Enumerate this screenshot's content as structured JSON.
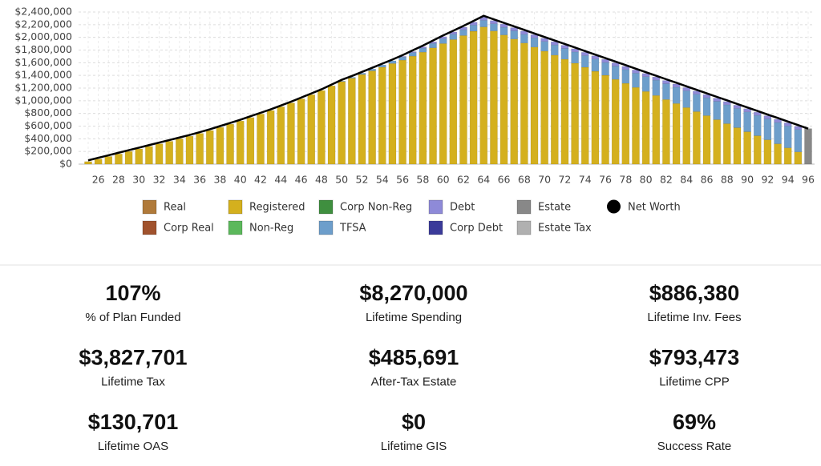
{
  "chart_data": {
    "type": "bar",
    "stacked": true,
    "categories": [
      null,
      "26",
      null,
      "28",
      null,
      "30",
      null,
      "32",
      null,
      "34",
      null,
      "36",
      null,
      "38",
      null,
      "40",
      null,
      "42",
      null,
      "44",
      null,
      "46",
      null,
      "48",
      null,
      "50",
      null,
      "52",
      null,
      "54",
      null,
      "56",
      null,
      "58",
      null,
      "60",
      null,
      "62",
      null,
      "64",
      null,
      "66",
      null,
      "68",
      null,
      "70",
      null,
      "72",
      null,
      "74",
      null,
      "76",
      null,
      "78",
      null,
      "80",
      null,
      "82",
      null,
      "84",
      null,
      "86",
      null,
      "88",
      null,
      "90",
      null,
      "92",
      null,
      "94",
      null,
      "96"
    ],
    "series": [
      {
        "name": "Real",
        "color": "#b07a3a",
        "values": [
          0,
          0,
          0,
          0,
          0,
          0,
          0,
          0,
          0,
          0,
          0,
          0,
          0,
          0,
          0,
          0,
          0,
          0,
          0,
          0,
          0,
          0,
          0,
          0,
          0,
          0,
          0,
          0,
          0,
          0,
          0,
          0,
          0,
          0,
          0,
          0,
          0,
          0,
          0,
          0,
          0,
          0,
          0,
          0,
          0,
          0,
          0,
          0,
          0,
          0,
          0,
          0,
          0,
          0,
          0,
          0,
          0,
          0,
          0,
          0,
          0,
          0,
          0,
          0,
          0,
          0,
          0,
          0,
          0,
          0,
          0,
          0
        ]
      },
      {
        "name": "Corp Real",
        "color": "#a0522d",
        "values": [
          0,
          0,
          0,
          0,
          0,
          0,
          0,
          0,
          0,
          0,
          0,
          0,
          0,
          0,
          0,
          0,
          0,
          0,
          0,
          0,
          0,
          0,
          0,
          0,
          0,
          0,
          0,
          0,
          0,
          0,
          0,
          0,
          0,
          0,
          0,
          0,
          0,
          0,
          0,
          0,
          0,
          0,
          0,
          0,
          0,
          0,
          0,
          0,
          0,
          0,
          0,
          0,
          0,
          0,
          0,
          0,
          0,
          0,
          0,
          0,
          0,
          0,
          0,
          0,
          0,
          0,
          0,
          0,
          0,
          0,
          0,
          0
        ]
      },
      {
        "name": "Registered",
        "color": "#d4b01e",
        "values": [
          40000,
          80000,
          120000,
          160000,
          200000,
          240000,
          280000,
          320000,
          360000,
          400000,
          440000,
          485000,
          530000,
          580000,
          630000,
          680000,
          735000,
          790000,
          845000,
          905000,
          965000,
          1030000,
          1095000,
          1160000,
          1235000,
          1303000,
          1356000,
          1414000,
          1472000,
          1530000,
          1588000,
          1641000,
          1704000,
          1767000,
          1835000,
          1903000,
          1966000,
          2029000,
          2097000,
          2165000,
          2101000,
          2038000,
          1974000,
          1911000,
          1847000,
          1783000,
          1720000,
          1656000,
          1593000,
          1529000,
          1465000,
          1402000,
          1338000,
          1275000,
          1211000,
          1147000,
          1084000,
          1020000,
          957000,
          893000,
          829000,
          766000,
          702000,
          639000,
          575000,
          511000,
          448000,
          384000,
          321000,
          257000,
          193000,
          0
        ]
      },
      {
        "name": "Non-Reg",
        "color": "#5cb85c",
        "values": [
          0,
          0,
          0,
          0,
          0,
          0,
          0,
          0,
          0,
          0,
          0,
          0,
          0,
          0,
          0,
          0,
          0,
          0,
          0,
          0,
          0,
          0,
          0,
          0,
          0,
          0,
          0,
          0,
          0,
          0,
          0,
          0,
          0,
          0,
          0,
          0,
          0,
          0,
          0,
          0,
          0,
          0,
          0,
          0,
          0,
          0,
          0,
          0,
          0,
          0,
          0,
          0,
          0,
          0,
          0,
          0,
          0,
          0,
          0,
          0,
          0,
          0,
          0,
          0,
          0,
          0,
          0,
          0,
          0,
          0,
          0,
          0
        ]
      },
      {
        "name": "Corp Non-Reg",
        "color": "#3f8f3f",
        "values": [
          0,
          0,
          0,
          0,
          0,
          0,
          0,
          0,
          0,
          0,
          0,
          0,
          0,
          0,
          0,
          0,
          0,
          0,
          0,
          0,
          0,
          0,
          0,
          0,
          0,
          0,
          0,
          0,
          0,
          0,
          0,
          0,
          0,
          0,
          0,
          0,
          0,
          0,
          0,
          0,
          0,
          0,
          0,
          0,
          0,
          0,
          0,
          0,
          0,
          0,
          0,
          0,
          0,
          0,
          0,
          0,
          0,
          0,
          0,
          0,
          0,
          0,
          0,
          0,
          0,
          0,
          0,
          0,
          0,
          0,
          0,
          0
        ]
      },
      {
        "name": "TFSA",
        "color": "#6d9ecb",
        "values": [
          0,
          0,
          0,
          0,
          0,
          0,
          0,
          0,
          0,
          0,
          0,
          0,
          0,
          0,
          0,
          0,
          0,
          0,
          0,
          0,
          0,
          0,
          0,
          0,
          0,
          7000,
          14000,
          21000,
          28000,
          35000,
          42000,
          49000,
          56000,
          63000,
          70000,
          77000,
          84000,
          91000,
          98000,
          105000,
          113000,
          121000,
          129000,
          137000,
          145000,
          153000,
          161000,
          169000,
          177000,
          185000,
          193000,
          201000,
          209000,
          217000,
          225000,
          233000,
          241000,
          249000,
          257000,
          265000,
          273000,
          281000,
          289000,
          297000,
          305000,
          313000,
          321000,
          329000,
          337000,
          345000,
          353000,
          0
        ]
      },
      {
        "name": "Debt",
        "color": "#8e8ad8",
        "values": [
          0,
          0,
          0,
          0,
          0,
          0,
          0,
          0,
          0,
          0,
          0,
          0,
          0,
          0,
          0,
          0,
          0,
          0,
          0,
          0,
          0,
          0,
          0,
          0,
          0,
          0,
          0,
          0,
          0,
          0,
          0,
          10000,
          15000,
          20000,
          25000,
          30000,
          35000,
          40000,
          45000,
          50000,
          50000,
          50000,
          50000,
          50000,
          50000,
          50000,
          50000,
          50000,
          50000,
          50000,
          50000,
          50000,
          50000,
          50000,
          50000,
          50000,
          50000,
          50000,
          50000,
          50000,
          50000,
          50000,
          50000,
          50000,
          50000,
          50000,
          50000,
          50000,
          50000,
          50000,
          50000,
          0
        ]
      },
      {
        "name": "Corp Debt",
        "color": "#3b3b9a",
        "values": [
          0,
          0,
          0,
          0,
          0,
          0,
          0,
          0,
          0,
          0,
          0,
          0,
          0,
          0,
          0,
          0,
          0,
          0,
          0,
          0,
          0,
          0,
          0,
          0,
          0,
          0,
          0,
          0,
          0,
          0,
          0,
          0,
          0,
          0,
          0,
          0,
          0,
          0,
          0,
          0,
          0,
          0,
          0,
          0,
          0,
          0,
          0,
          0,
          0,
          0,
          0,
          0,
          0,
          0,
          0,
          0,
          0,
          0,
          0,
          0,
          0,
          0,
          0,
          0,
          0,
          0,
          0,
          0,
          0,
          0,
          0,
          0
        ]
      },
      {
        "name": "Estate",
        "color": "#888888",
        "values": [
          0,
          0,
          0,
          0,
          0,
          0,
          0,
          0,
          0,
          0,
          0,
          0,
          0,
          0,
          0,
          0,
          0,
          0,
          0,
          0,
          0,
          0,
          0,
          0,
          0,
          0,
          0,
          0,
          0,
          0,
          0,
          0,
          0,
          0,
          0,
          0,
          0,
          0,
          0,
          0,
          0,
          0,
          0,
          0,
          0,
          0,
          0,
          0,
          0,
          0,
          0,
          0,
          0,
          0,
          0,
          0,
          0,
          0,
          0,
          0,
          0,
          0,
          0,
          0,
          0,
          0,
          0,
          0,
          0,
          0,
          0,
          560000
        ]
      },
      {
        "name": "Estate Tax",
        "color": "#b0b0b0",
        "values": [
          0,
          0,
          0,
          0,
          0,
          0,
          0,
          0,
          0,
          0,
          0,
          0,
          0,
          0,
          0,
          0,
          0,
          0,
          0,
          0,
          0,
          0,
          0,
          0,
          0,
          0,
          0,
          0,
          0,
          0,
          0,
          0,
          0,
          0,
          0,
          0,
          0,
          0,
          0,
          0,
          0,
          0,
          0,
          0,
          0,
          0,
          0,
          0,
          0,
          0,
          0,
          0,
          0,
          0,
          0,
          0,
          0,
          0,
          0,
          0,
          0,
          0,
          0,
          0,
          0,
          0,
          0,
          0,
          0,
          0,
          0,
          0
        ]
      }
    ],
    "net_worth": {
      "name": "Net Worth",
      "color": "#000000",
      "values": [
        60000,
        100000,
        140000,
        180000,
        220000,
        260000,
        300000,
        340000,
        380000,
        420000,
        460000,
        505000,
        550000,
        600000,
        650000,
        700000,
        755000,
        810000,
        865000,
        925000,
        985000,
        1050000,
        1115000,
        1180000,
        1255000,
        1330000,
        1390000,
        1455000,
        1520000,
        1585000,
        1650000,
        1720000,
        1795000,
        1870000,
        1950000,
        2030000,
        2105000,
        2180000,
        2260000,
        2340000,
        2284000,
        2229000,
        2173000,
        2118000,
        2062000,
        2006000,
        1951000,
        1895000,
        1840000,
        1784000,
        1728000,
        1673000,
        1617000,
        1562000,
        1506000,
        1450000,
        1395000,
        1339000,
        1284000,
        1228000,
        1172000,
        1117000,
        1061000,
        1006000,
        950000,
        894000,
        839000,
        783000,
        728000,
        672000,
        616000,
        560000
      ]
    },
    "ylim": [
      0,
      2400000
    ],
    "yticks": [
      {
        "value": 0,
        "label": "$0"
      },
      {
        "value": 200000,
        "label": "$200,000"
      },
      {
        "value": 400000,
        "label": "$400,000"
      },
      {
        "value": 600000,
        "label": "$600,000"
      },
      {
        "value": 800000,
        "label": "$800,000"
      },
      {
        "value": 1000000,
        "label": "$1,000,000"
      },
      {
        "value": 1200000,
        "label": "$1,200,000"
      },
      {
        "value": 1400000,
        "label": "$1,400,000"
      },
      {
        "value": 1600000,
        "label": "$1,600,000"
      },
      {
        "value": 1800000,
        "label": "$1,800,000"
      },
      {
        "value": 2000000,
        "label": "$2,000,000"
      },
      {
        "value": 2200000,
        "label": "$2,200,000"
      },
      {
        "value": 2400000,
        "label": "$2,400,000"
      }
    ],
    "grid": true
  },
  "stats": [
    {
      "value": "107%",
      "label": "% of Plan Funded"
    },
    {
      "value": "$8,270,000",
      "label": "Lifetime Spending"
    },
    {
      "value": "$886,380",
      "label": "Lifetime Inv. Fees"
    },
    {
      "value": "$3,827,701",
      "label": "Lifetime Tax"
    },
    {
      "value": "$485,691",
      "label": "After-Tax Estate"
    },
    {
      "value": "$793,473",
      "label": "Lifetime CPP"
    },
    {
      "value": "$130,701",
      "label": "Lifetime OAS"
    },
    {
      "value": "$0",
      "label": "Lifetime GIS"
    },
    {
      "value": "69%",
      "label": "Success Rate"
    }
  ]
}
